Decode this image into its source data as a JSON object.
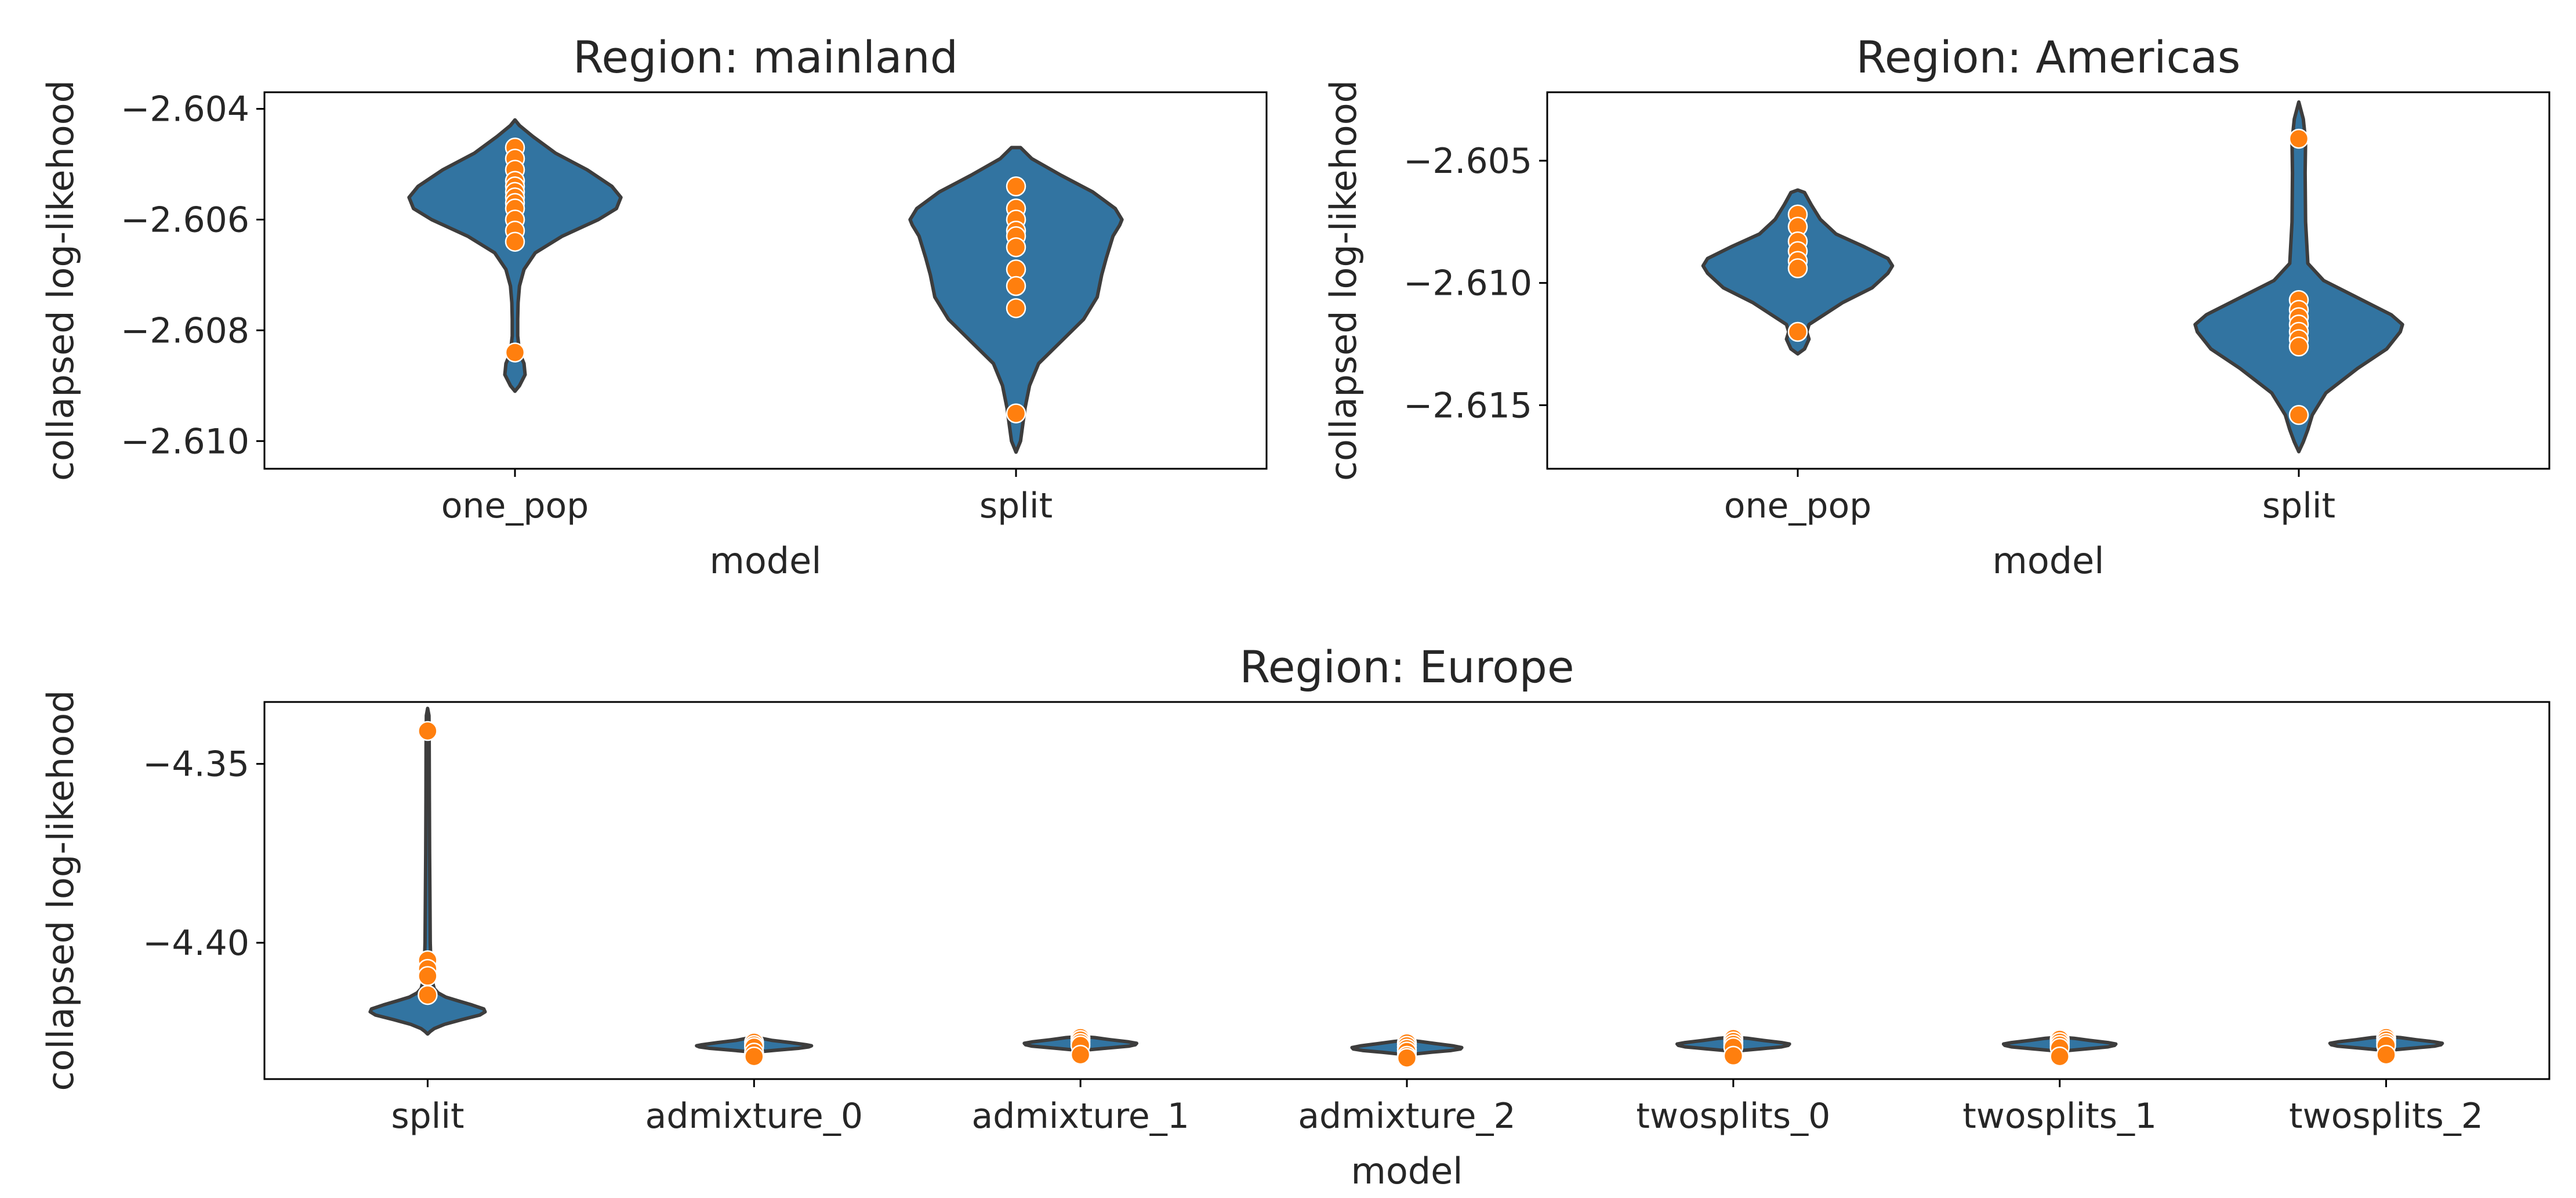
{
  "colors": {
    "violin_fill": "#3274a1",
    "violin_edge": "#3d3d3d",
    "point_fill": "#ff7f0e",
    "point_edge": "#ffffff",
    "axis": "#000000"
  },
  "chart_data": [
    {
      "type": "violin",
      "title": "Region: mainland",
      "xlabel": "model",
      "ylabel": "collapsed log-likehood",
      "categories": [
        "one_pop",
        "split"
      ],
      "ylim": [
        -2.6105,
        -2.6037
      ],
      "yticks": [
        -2.604,
        -2.606,
        -2.608,
        -2.61
      ],
      "ytick_labels": [
        "−2.604",
        "−2.606",
        "−2.608",
        "−2.610"
      ],
      "grid": false,
      "violins": [
        {
          "category": "one_pop",
          "profile": [
            [
              -2.6091,
              0.0
            ],
            [
              -2.609,
              0.02
            ],
            [
              -2.6088,
              0.045
            ],
            [
              -2.6086,
              0.04
            ],
            [
              -2.6084,
              0.02
            ],
            [
              -2.6081,
              0.012
            ],
            [
              -2.6078,
              0.012
            ],
            [
              -2.6075,
              0.014
            ],
            [
              -2.6072,
              0.02
            ],
            [
              -2.6069,
              0.04
            ],
            [
              -2.6066,
              0.09
            ],
            [
              -2.6063,
              0.21
            ],
            [
              -2.606,
              0.37
            ],
            [
              -2.6058,
              0.45
            ],
            [
              -2.6056,
              0.47
            ],
            [
              -2.6054,
              0.43
            ],
            [
              -2.6051,
              0.32
            ],
            [
              -2.6048,
              0.18
            ],
            [
              -2.6045,
              0.08
            ],
            [
              -2.6043,
              0.02
            ],
            [
              -2.6042,
              0.0
            ]
          ],
          "points": [
            -2.6047,
            -2.6049,
            -2.6051,
            -2.6053,
            -2.6054,
            -2.6055,
            -2.6056,
            -2.6057,
            -2.6058,
            -2.606,
            -2.6062,
            -2.6064,
            -2.6084
          ]
        },
        {
          "category": "split",
          "profile": [
            [
              -2.6102,
              0.0
            ],
            [
              -2.61,
              0.02
            ],
            [
              -2.6097,
              0.03
            ],
            [
              -2.6094,
              0.04
            ],
            [
              -2.609,
              0.06
            ],
            [
              -2.6086,
              0.1
            ],
            [
              -2.6082,
              0.2
            ],
            [
              -2.6078,
              0.3
            ],
            [
              -2.6074,
              0.36
            ],
            [
              -2.607,
              0.38
            ],
            [
              -2.6067,
              0.4
            ],
            [
              -2.6063,
              0.43
            ],
            [
              -2.6061,
              0.46
            ],
            [
              -2.606,
              0.47
            ],
            [
              -2.6058,
              0.44
            ],
            [
              -2.6055,
              0.34
            ],
            [
              -2.6052,
              0.2
            ],
            [
              -2.6049,
              0.07
            ],
            [
              -2.6047,
              0.02
            ],
            [
              -2.6047,
              0.0
            ]
          ],
          "points": [
            -2.6054,
            -2.6058,
            -2.606,
            -2.6062,
            -2.6063,
            -2.6065,
            -2.6069,
            -2.6072,
            -2.6076,
            -2.6095
          ]
        }
      ]
    },
    {
      "type": "violin",
      "title": "Region: Americas",
      "xlabel": "model",
      "ylabel": "collapsed log-likehood",
      "categories": [
        "one_pop",
        "split"
      ],
      "ylim": [
        -2.6176,
        -2.6022
      ],
      "yticks": [
        -2.605,
        -2.61,
        -2.615
      ],
      "ytick_labels": [
        "−2.605",
        "−2.610",
        "−2.615"
      ],
      "grid": false,
      "violins": [
        {
          "category": "one_pop",
          "profile": [
            [
              -2.6129,
              0.0
            ],
            [
              -2.6127,
              0.03
            ],
            [
              -2.6123,
              0.05
            ],
            [
              -2.612,
              0.04
            ],
            [
              -2.6117,
              0.05
            ],
            [
              -2.6114,
              0.1
            ],
            [
              -2.6108,
              0.2
            ],
            [
              -2.6102,
              0.33
            ],
            [
              -2.6096,
              0.4
            ],
            [
              -2.6093,
              0.42
            ],
            [
              -2.609,
              0.4
            ],
            [
              -2.6085,
              0.29
            ],
            [
              -2.608,
              0.17
            ],
            [
              -2.6074,
              0.1
            ],
            [
              -2.6068,
              0.06
            ],
            [
              -2.6063,
              0.03
            ],
            [
              -2.6062,
              0.0
            ]
          ],
          "points": [
            -2.6072,
            -2.6077,
            -2.6083,
            -2.6087,
            -2.6091,
            -2.6094,
            -2.612
          ]
        },
        {
          "category": "split",
          "profile": [
            [
              -2.6169,
              0.0
            ],
            [
              -2.6165,
              0.02
            ],
            [
              -2.616,
              0.04
            ],
            [
              -2.6154,
              0.06
            ],
            [
              -2.6145,
              0.12
            ],
            [
              -2.6135,
              0.26
            ],
            [
              -2.6127,
              0.39
            ],
            [
              -2.612,
              0.45
            ],
            [
              -2.6117,
              0.46
            ],
            [
              -2.6113,
              0.41
            ],
            [
              -2.6106,
              0.26
            ],
            [
              -2.6099,
              0.11
            ],
            [
              -2.6092,
              0.04
            ],
            [
              -2.6075,
              0.03
            ],
            [
              -2.6055,
              0.028
            ],
            [
              -2.6042,
              0.03
            ],
            [
              -2.6033,
              0.02
            ],
            [
              -2.6026,
              0.0
            ]
          ],
          "points": [
            -2.6041,
            -2.6107,
            -2.6111,
            -2.6114,
            -2.6117,
            -2.612,
            -2.6123,
            -2.6126,
            -2.6154
          ]
        }
      ]
    },
    {
      "type": "violin",
      "title": "Region: Europe",
      "xlabel": "model",
      "ylabel": "collapsed log-likehood",
      "categories": [
        "split",
        "admixture_0",
        "admixture_1",
        "admixture_2",
        "twosplits_0",
        "twosplits_1",
        "twosplits_2"
      ],
      "ylim": [
        -4.4381,
        -4.3327
      ],
      "yticks": [
        -4.35,
        -4.4
      ],
      "ytick_labels": [
        "−4.35",
        "−4.40"
      ],
      "grid": false,
      "violins": [
        {
          "category": "split",
          "profile": [
            [
              -4.4255,
              0.0
            ],
            [
              -4.4248,
              0.02
            ],
            [
              -4.424,
              0.05
            ],
            [
              -4.4228,
              0.13
            ],
            [
              -4.4215,
              0.26
            ],
            [
              -4.4202,
              0.4
            ],
            [
              -4.4193,
              0.44
            ],
            [
              -4.4185,
              0.43
            ],
            [
              -4.4174,
              0.34
            ],
            [
              -4.4163,
              0.24
            ],
            [
              -4.4152,
              0.14
            ],
            [
              -4.414,
              0.08
            ],
            [
              -4.4128,
              0.05
            ],
            [
              -4.41,
              0.03
            ],
            [
              -4.406,
              0.025
            ],
            [
              -4.4,
              0.02
            ],
            [
              -4.39,
              0.018
            ],
            [
              -4.375,
              0.015
            ],
            [
              -4.36,
              0.013
            ],
            [
              -4.345,
              0.012
            ],
            [
              -4.3365,
              0.01
            ],
            [
              -4.3345,
              0.0
            ]
          ],
          "points": [
            -4.3408,
            -4.4049,
            -4.4073,
            -4.4093,
            -4.4146
          ]
        },
        {
          "category": "admixture_0",
          "profile": [
            [
              -4.4306,
              0.0
            ],
            [
              -4.4304,
              0.06
            ],
            [
              -4.43,
              0.18
            ],
            [
              -4.4295,
              0.34
            ],
            [
              -4.4291,
              0.42
            ],
            [
              -4.4288,
              0.44
            ],
            [
              -4.4285,
              0.4
            ],
            [
              -4.4279,
              0.28
            ],
            [
              -4.4273,
              0.14
            ],
            [
              -4.4268,
              0.07
            ],
            [
              -4.4265,
              0.0
            ]
          ],
          "points": [
            -4.4278,
            -4.4286,
            -4.4292,
            -4.4307,
            -4.4318
          ]
        },
        {
          "category": "admixture_1",
          "profile": [
            [
              -4.4302,
              0.0
            ],
            [
              -4.4299,
              0.07
            ],
            [
              -4.4294,
              0.22
            ],
            [
              -4.4289,
              0.37
            ],
            [
              -4.4285,
              0.42
            ],
            [
              -4.4281,
              0.43
            ],
            [
              -4.4277,
              0.37
            ],
            [
              -4.4271,
              0.23
            ],
            [
              -4.4265,
              0.11
            ],
            [
              -4.4262,
              0.0
            ]
          ],
          "points": [
            -4.4265,
            -4.4272,
            -4.428,
            -4.4287,
            -4.4313
          ]
        },
        {
          "category": "admixture_2",
          "profile": [
            [
              -4.4314,
              0.0
            ],
            [
              -4.4311,
              0.06
            ],
            [
              -4.4306,
              0.19
            ],
            [
              -4.4301,
              0.34
            ],
            [
              -4.4297,
              0.41
            ],
            [
              -4.4293,
              0.42
            ],
            [
              -4.4288,
              0.35
            ],
            [
              -4.4282,
              0.22
            ],
            [
              -4.4276,
              0.1
            ],
            [
              -4.4272,
              0.0
            ]
          ],
          "points": [
            -4.428,
            -4.4288,
            -4.4296,
            -4.4304,
            -4.4316,
            -4.4322
          ]
        },
        {
          "category": "twosplits_0",
          "profile": [
            [
              -4.4304,
              0.0
            ],
            [
              -4.4301,
              0.07
            ],
            [
              -4.4296,
              0.22
            ],
            [
              -4.4291,
              0.37
            ],
            [
              -4.4287,
              0.42
            ],
            [
              -4.4283,
              0.43
            ],
            [
              -4.4279,
              0.37
            ],
            [
              -4.4273,
              0.23
            ],
            [
              -4.4267,
              0.11
            ],
            [
              -4.4264,
              0.0
            ]
          ],
          "points": [
            -4.4268,
            -4.4276,
            -4.4284,
            -4.4292,
            -4.4316
          ]
        },
        {
          "category": "twosplits_1",
          "profile": [
            [
              -4.4304,
              0.0
            ],
            [
              -4.4301,
              0.07
            ],
            [
              -4.4296,
              0.22
            ],
            [
              -4.4291,
              0.37
            ],
            [
              -4.4287,
              0.42
            ],
            [
              -4.4283,
              0.43
            ],
            [
              -4.4279,
              0.37
            ],
            [
              -4.4273,
              0.23
            ],
            [
              -4.4267,
              0.11
            ],
            [
              -4.4264,
              0.0
            ]
          ],
          "points": [
            -4.427,
            -4.4278,
            -4.4286,
            -4.4294,
            -4.4318
          ]
        },
        {
          "category": "twosplits_2",
          "profile": [
            [
              -4.4302,
              0.0
            ],
            [
              -4.4299,
              0.07
            ],
            [
              -4.4294,
              0.22
            ],
            [
              -4.4289,
              0.37
            ],
            [
              -4.4285,
              0.42
            ],
            [
              -4.4281,
              0.43
            ],
            [
              -4.4277,
              0.37
            ],
            [
              -4.4271,
              0.23
            ],
            [
              -4.4265,
              0.11
            ],
            [
              -4.4262,
              0.0
            ]
          ],
          "points": [
            -4.4265,
            -4.4272,
            -4.428,
            -4.4287,
            -4.4313
          ]
        }
      ]
    }
  ]
}
